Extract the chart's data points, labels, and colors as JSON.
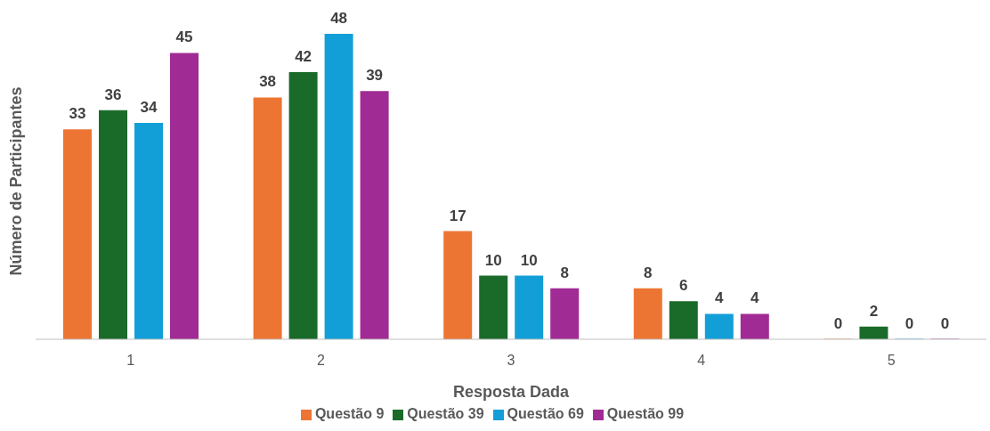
{
  "chart_data": {
    "type": "bar",
    "xlabel": "Resposta Dada",
    "ylabel": "Número de Participantes",
    "categories": [
      "1",
      "2",
      "3",
      "4",
      "5"
    ],
    "series": [
      {
        "name": "Questão 9",
        "color": "#ed7533",
        "values": [
          33,
          38,
          17,
          8,
          0
        ]
      },
      {
        "name": "Questão 39",
        "color": "#1a6b2a",
        "values": [
          36,
          42,
          10,
          6,
          2
        ]
      },
      {
        "name": "Questão 69",
        "color": "#129fd8",
        "values": [
          34,
          48,
          10,
          4,
          0
        ]
      },
      {
        "name": "Questão 99",
        "color": "#a12b94",
        "values": [
          45,
          39,
          8,
          4,
          0
        ]
      }
    ],
    "data_labels": true,
    "grid": false,
    "legend": "bottom"
  }
}
